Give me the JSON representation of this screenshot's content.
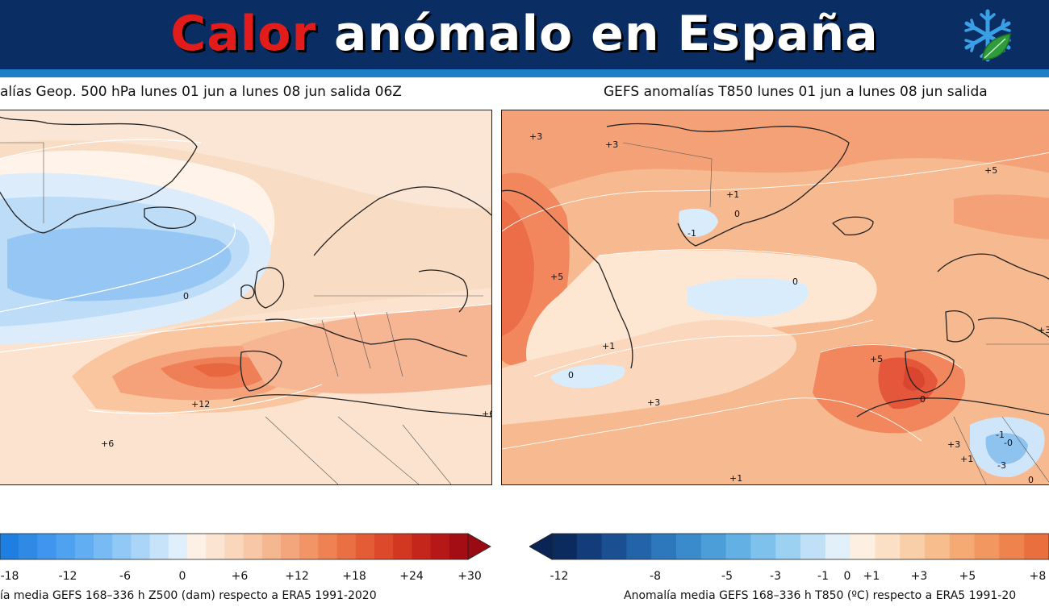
{
  "banner": {
    "title_part1": "Calor",
    "title_part2": " anómalo en España",
    "logo": "snowflake-leaf-logo"
  },
  "left_map": {
    "title": "alías Geop. 500 hPa lunes 01 jun a lunes 08 jun salida 06Z",
    "contour_labels": [
      "0",
      "+12",
      "+6",
      "+6"
    ],
    "colorbar_ticks": [
      "-18",
      "-12",
      "-6",
      "0",
      "+6",
      "+12",
      "+18",
      "+24",
      "+30"
    ],
    "colorbar_caption": "ía media GEFS 168–336 h Z500 (dam) respecto a ERA5 1991-2020"
  },
  "right_map": {
    "title": "GEFS anomalías T850 lunes 01 jun a lunes 08 jun salida",
    "contour_labels": [
      "+3",
      "+3",
      "+1",
      "0",
      "-1",
      "+5",
      "+5",
      "0",
      "+1",
      "0",
      "+5",
      "+3",
      "+3",
      "0",
      "+3",
      "-1",
      "+1",
      "-3",
      "0",
      "+1",
      "-0"
    ],
    "colorbar_ticks": [
      "-12",
      "-8",
      "-5",
      "-3",
      "-1",
      "0",
      "+1",
      "+3",
      "+5",
      "+8"
    ],
    "colorbar_caption": "Anomalía media GEFS 168–336 h T850 (ºC) respecto a ERA5 1991-20"
  },
  "colors": {
    "banner_bg": "#0a2d63",
    "banner_stripe": "#1c7fc7",
    "title_accent": "#e21b1b"
  }
}
